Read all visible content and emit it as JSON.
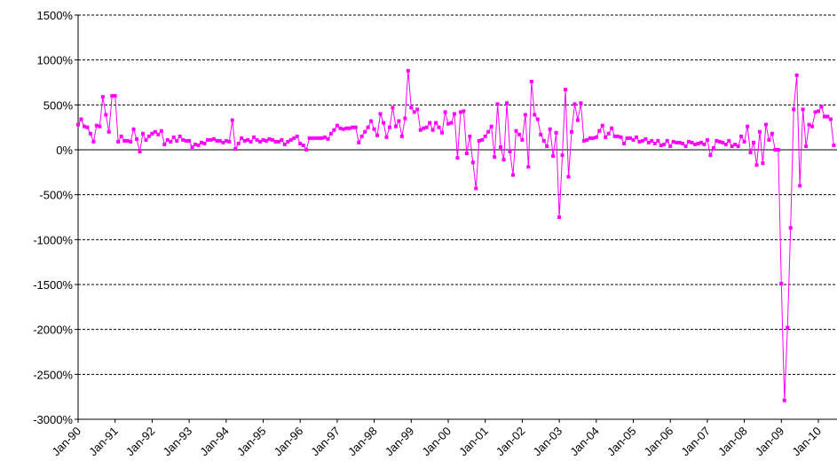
{
  "chart_data": {
    "type": "line",
    "categories": [
      "Jan-90",
      null,
      null,
      null,
      null,
      null,
      null,
      null,
      null,
      null,
      null,
      null,
      "Jan-91",
      null,
      null,
      null,
      null,
      null,
      null,
      null,
      null,
      null,
      null,
      null,
      "Jan-92",
      null,
      null,
      null,
      null,
      null,
      null,
      null,
      null,
      null,
      null,
      null,
      "Jan-93",
      null,
      null,
      null,
      null,
      null,
      null,
      null,
      null,
      null,
      null,
      null,
      "Jan-94",
      null,
      null,
      null,
      null,
      null,
      null,
      null,
      null,
      null,
      null,
      null,
      "Jan-95",
      null,
      null,
      null,
      null,
      null,
      null,
      null,
      null,
      null,
      null,
      null,
      "Jan-96",
      null,
      null,
      null,
      null,
      null,
      null,
      null,
      null,
      null,
      null,
      null,
      "Jan-97",
      null,
      null,
      null,
      null,
      null,
      null,
      null,
      null,
      null,
      null,
      null,
      "Jan-98",
      null,
      null,
      null,
      null,
      null,
      null,
      null,
      null,
      null,
      null,
      null,
      "Jan-99",
      null,
      null,
      null,
      null,
      null,
      null,
      null,
      null,
      null,
      null,
      null,
      "Jan-00",
      null,
      null,
      null,
      null,
      null,
      null,
      null,
      null,
      null,
      null,
      null,
      "Jan-01",
      null,
      null,
      null,
      null,
      null,
      null,
      null,
      null,
      null,
      null,
      null,
      "Jan-02",
      null,
      null,
      null,
      null,
      null,
      null,
      null,
      null,
      null,
      null,
      null,
      "Jan-03",
      null,
      null,
      null,
      null,
      null,
      null,
      null,
      null,
      null,
      null,
      null,
      "Jan-04",
      null,
      null,
      null,
      null,
      null,
      null,
      null,
      null,
      null,
      null,
      null,
      "Jan-05",
      null,
      null,
      null,
      null,
      null,
      null,
      null,
      null,
      null,
      null,
      null,
      "Jan-06",
      null,
      null,
      null,
      null,
      null,
      null,
      null,
      null,
      null,
      null,
      null,
      "Jan-07",
      null,
      null,
      null,
      null,
      null,
      null,
      null,
      null,
      null,
      null,
      null,
      "Jan-08",
      null,
      null,
      null,
      null,
      null,
      null,
      null,
      null,
      null,
      null,
      null,
      "Jan-09",
      null,
      null,
      null,
      null,
      null,
      null,
      null,
      null,
      null,
      null,
      null,
      "Jan-10",
      null,
      null,
      null,
      null,
      null
    ],
    "values": [
      280,
      340,
      260,
      250,
      180,
      90,
      270,
      260,
      590,
      390,
      200,
      600,
      600,
      90,
      150,
      100,
      100,
      90,
      230,
      120,
      -20,
      180,
      110,
      150,
      180,
      200,
      170,
      210,
      60,
      110,
      90,
      140,
      100,
      150,
      110,
      100,
      100,
      30,
      60,
      50,
      80,
      70,
      110,
      110,
      120,
      100,
      100,
      80,
      100,
      90,
      330,
      10,
      70,
      130,
      100,
      110,
      90,
      140,
      110,
      90,
      110,
      100,
      120,
      110,
      90,
      90,
      110,
      60,
      90,
      110,
      130,
      150,
      70,
      50,
      0,
      130,
      130,
      130,
      130,
      130,
      140,
      120,
      180,
      220,
      270,
      240,
      230,
      240,
      240,
      250,
      250,
      80,
      150,
      200,
      250,
      320,
      230,
      160,
      400,
      300,
      140,
      250,
      470,
      260,
      320,
      150,
      350,
      880,
      470,
      420,
      450,
      220,
      240,
      250,
      300,
      220,
      300,
      250,
      190,
      420,
      290,
      300,
      400,
      -90,
      420,
      430,
      -40,
      150,
      -140,
      -430,
      100,
      110,
      150,
      200,
      260,
      -80,
      510,
      30,
      -110,
      520,
      -20,
      -280,
      210,
      170,
      110,
      390,
      -190,
      760,
      390,
      340,
      170,
      100,
      40,
      230,
      -70,
      190,
      -750,
      -60,
      670,
      -300,
      200,
      510,
      330,
      520,
      100,
      110,
      130,
      130,
      140,
      210,
      270,
      140,
      180,
      240,
      150,
      150,
      140,
      70,
      130,
      130,
      110,
      140,
      90,
      100,
      120,
      80,
      100,
      70,
      100,
      50,
      60,
      100,
      40,
      90,
      80,
      80,
      70,
      40,
      90,
      80,
      60,
      70,
      80,
      60,
      110,
      -60,
      20,
      100,
      90,
      80,
      60,
      100,
      40,
      60,
      40,
      150,
      90,
      260,
      -30,
      80,
      -170,
      200,
      -150,
      280,
      110,
      180,
      0,
      0,
      -1490,
      -2790,
      -1980,
      -870,
      450,
      830,
      -400,
      450,
      40,
      280,
      260,
      420,
      430,
      480,
      370,
      370,
      340,
      50
    ],
    "color": "#ff00ff",
    "ylim": [
      -3000,
      1500
    ],
    "yticks": [
      {
        "value": -3000,
        "label": "-3000%"
      },
      {
        "value": -2500,
        "label": "-2500%"
      },
      {
        "value": -2000,
        "label": "-2000%"
      },
      {
        "value": -1500,
        "label": "-1500%"
      },
      {
        "value": -1000,
        "label": "-1000%"
      },
      {
        "value": -500,
        "label": "-500%"
      },
      {
        "value": 0,
        "label": "0%"
      },
      {
        "value": 500,
        "label": "500%"
      },
      {
        "value": 1000,
        "label": "1000%"
      },
      {
        "value": 1500,
        "label": "1500%"
      }
    ],
    "grid": true
  }
}
